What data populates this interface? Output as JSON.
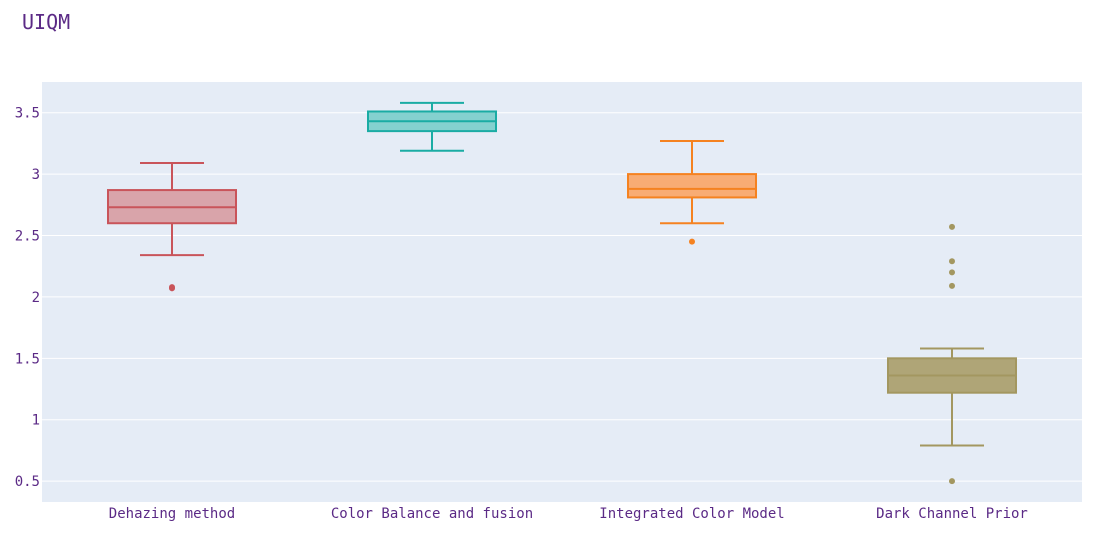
{
  "chart_data": {
    "type": "box",
    "title": "UIQM",
    "xlabel": "",
    "ylabel": "",
    "ylim": [
      0.33,
      3.75
    ],
    "yticks": [
      0.5,
      1,
      1.5,
      2,
      2.5,
      3,
      3.5
    ],
    "ytick_labels": [
      "0.5",
      "1",
      "1.5",
      "2",
      "2.5",
      "3",
      "3.5"
    ],
    "grid": true,
    "categories": [
      "Dehazing method",
      "Color Balance and fusion",
      "Integrated Color Model",
      "Dark Channel Prior"
    ],
    "series": [
      {
        "category": "Dehazing method",
        "min": 2.34,
        "q1": 2.6,
        "median": 2.73,
        "q3": 2.87,
        "max": 3.09,
        "outliers": [
          2.07,
          2.08
        ],
        "color": "#c9545a",
        "fill": "#d9a4aa"
      },
      {
        "category": "Color Balance and fusion",
        "min": 3.19,
        "q1": 3.35,
        "median": 3.43,
        "q3": 3.51,
        "max": 3.58,
        "outliers": [],
        "color": "#1aaca4",
        "fill": "#84d1cf"
      },
      {
        "category": "Integrated Color Model",
        "min": 2.6,
        "q1": 2.81,
        "median": 2.88,
        "q3": 3.0,
        "max": 3.27,
        "outliers": [
          2.45
        ],
        "color": "#f58220",
        "fill": "#f8ac74"
      },
      {
        "category": "Dark Channel Prior",
        "min": 0.79,
        "q1": 1.22,
        "median": 1.36,
        "q3": 1.5,
        "max": 1.58,
        "outliers": [
          0.5,
          2.09,
          2.2,
          2.29,
          2.57
        ],
        "color": "#a39760",
        "fill": "#afa577"
      }
    ],
    "colors": {
      "plot_bg": "#e5ecf6",
      "grid": "#ffffff",
      "text": "#5b2a86"
    }
  }
}
